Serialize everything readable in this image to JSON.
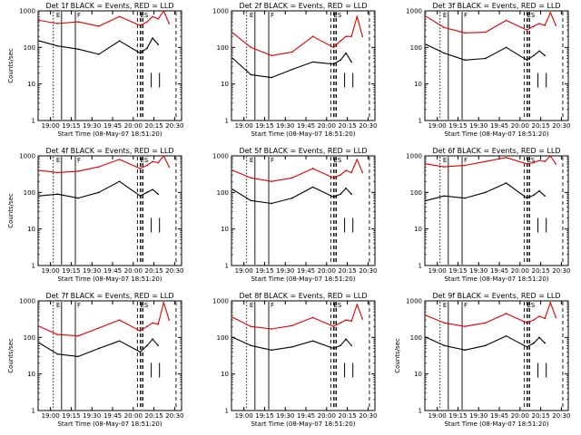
{
  "colors": {
    "events": "#000000",
    "lld": "#e00000",
    "axes": "#000000",
    "background": "#ffffff"
  },
  "chart_data": [
    {
      "type": "line",
      "title": "Det 1f BLACK = Events, RED = LLD",
      "xlabel": "Start Time (08-May-07 18:51:20)",
      "ylabel": "Counts/sec",
      "yscale": "log",
      "ylim": [
        1,
        1000
      ],
      "xlim": [
        "18:51",
        "20:35"
      ],
      "x_ticks": [
        "19:00",
        "19:15",
        "19:30",
        "19:45",
        "20:00",
        "20:15",
        "20:30"
      ],
      "y_ticks": [
        "1",
        "10",
        "100",
        "1000"
      ],
      "annotations": [
        "E",
        "F",
        "ES"
      ],
      "series": [
        {
          "name": "BLACK = Events",
          "color": "#000000",
          "x": [
            "18:52",
            "19:05",
            "19:20",
            "19:35",
            "19:50",
            "20:05",
            "20:10",
            "20:14",
            "20:18"
          ],
          "values": [
            150,
            110,
            90,
            65,
            150,
            70,
            95,
            180,
            120
          ]
        },
        {
          "name": "RED = LLD",
          "color": "#e00000",
          "x": [
            "18:52",
            "19:05",
            "19:20",
            "19:35",
            "19:50",
            "20:05",
            "20:10",
            "20:14",
            "20:18",
            "20:22",
            "20:26"
          ],
          "values": [
            550,
            450,
            500,
            380,
            700,
            400,
            500,
            700,
            600,
            1000,
            450
          ]
        }
      ]
    },
    {
      "type": "line",
      "title": "Det 2f BLACK = Events, RED = LLD",
      "xlabel": "Start Time (08-May-07 18:51:20)",
      "ylabel": "",
      "yscale": "log",
      "ylim": [
        1,
        1000
      ],
      "xlim": [
        "18:51",
        "20:35"
      ],
      "x_ticks": [
        "19:00",
        "19:15",
        "19:30",
        "19:45",
        "20:00",
        "20:15",
        "20:30"
      ],
      "y_ticks": [
        "1",
        "10",
        "100",
        "1000"
      ],
      "annotations": [
        "E",
        "F",
        "ES"
      ],
      "series": [
        {
          "name": "BLACK = Events",
          "color": "#000000",
          "x": [
            "18:52",
            "19:05",
            "19:20",
            "19:35",
            "19:50",
            "20:05",
            "20:10",
            "20:14",
            "20:18"
          ],
          "values": [
            50,
            18,
            15,
            25,
            40,
            35,
            45,
            70,
            40
          ]
        },
        {
          "name": "RED = LLD",
          "color": "#e00000",
          "x": [
            "18:52",
            "19:05",
            "19:20",
            "19:35",
            "19:50",
            "20:05",
            "20:10",
            "20:14",
            "20:18",
            "20:22",
            "20:26"
          ],
          "values": [
            250,
            100,
            60,
            75,
            200,
            100,
            150,
            200,
            200,
            700,
            200
          ]
        }
      ]
    },
    {
      "type": "line",
      "title": "Det 3f BLACK = Events, RED = LLD",
      "xlabel": "Start Time (08-May-07 18:51:20)",
      "ylabel": "",
      "yscale": "log",
      "ylim": [
        1,
        1000
      ],
      "xlim": [
        "18:51",
        "20:35"
      ],
      "x_ticks": [
        "19:00",
        "19:15",
        "19:30",
        "19:45",
        "20:00",
        "20:15",
        "20:30"
      ],
      "y_ticks": [
        "1",
        "10",
        "100",
        "1000"
      ],
      "annotations": [
        "E",
        "F",
        "ES"
      ],
      "series": [
        {
          "name": "BLACK = Events",
          "color": "#000000",
          "x": [
            "18:52",
            "19:05",
            "19:20",
            "19:35",
            "19:50",
            "20:05",
            "20:10",
            "20:14",
            "20:18"
          ],
          "values": [
            120,
            70,
            45,
            50,
            100,
            45,
            60,
            80,
            60
          ]
        },
        {
          "name": "RED = LLD",
          "color": "#e00000",
          "x": [
            "18:52",
            "19:05",
            "19:20",
            "19:35",
            "19:50",
            "20:05",
            "20:10",
            "20:14",
            "20:18",
            "20:22",
            "20:26"
          ],
          "values": [
            700,
            350,
            250,
            260,
            550,
            300,
            380,
            450,
            400,
            900,
            400
          ]
        }
      ]
    },
    {
      "type": "line",
      "title": "Det 4f BLACK = Events, RED = LLD",
      "xlabel": "Start Time (08-May-07 18:51:20)",
      "ylabel": "Counts/sec",
      "yscale": "log",
      "ylim": [
        1,
        1000
      ],
      "xlim": [
        "18:51",
        "20:35"
      ],
      "x_ticks": [
        "19:00",
        "19:15",
        "19:30",
        "19:45",
        "20:00",
        "20:15",
        "20:30"
      ],
      "y_ticks": [
        "1",
        "10",
        "100",
        "1000"
      ],
      "annotations": [
        "E",
        "F",
        "ES"
      ],
      "series": [
        {
          "name": "BLACK = Events",
          "color": "#000000",
          "x": [
            "18:52",
            "19:05",
            "19:20",
            "19:35",
            "19:50",
            "20:05",
            "20:10",
            "20:14",
            "20:18"
          ],
          "values": [
            80,
            90,
            70,
            100,
            200,
            80,
            100,
            120,
            90
          ]
        },
        {
          "name": "RED = LLD",
          "color": "#e00000",
          "x": [
            "18:52",
            "19:05",
            "19:20",
            "19:35",
            "19:50",
            "20:05",
            "20:10",
            "20:14",
            "20:18",
            "20:22",
            "20:26"
          ],
          "values": [
            400,
            350,
            380,
            500,
            800,
            450,
            550,
            700,
            650,
            1000,
            500
          ]
        }
      ]
    },
    {
      "type": "line",
      "title": "Det 5f BLACK = Events, RED = LLD",
      "xlabel": "Start Time (08-May-07 18:51:20)",
      "ylabel": "",
      "yscale": "log",
      "ylim": [
        1,
        1000
      ],
      "xlim": [
        "18:51",
        "20:35"
      ],
      "x_ticks": [
        "19:00",
        "19:15",
        "19:30",
        "19:45",
        "20:00",
        "20:15",
        "20:30"
      ],
      "y_ticks": [
        "1",
        "10",
        "100",
        "1000"
      ],
      "annotations": [
        "E",
        "F",
        "ES"
      ],
      "series": [
        {
          "name": "BLACK = Events",
          "color": "#000000",
          "x": [
            "18:52",
            "19:05",
            "19:20",
            "19:35",
            "19:50",
            "20:05",
            "20:10",
            "20:14",
            "20:18"
          ],
          "values": [
            120,
            60,
            50,
            70,
            140,
            75,
            90,
            130,
            90
          ]
        },
        {
          "name": "RED = LLD",
          "color": "#e00000",
          "x": [
            "18:52",
            "19:05",
            "19:20",
            "19:35",
            "19:50",
            "20:05",
            "20:10",
            "20:14",
            "20:18",
            "20:22",
            "20:26"
          ],
          "values": [
            400,
            250,
            200,
            250,
            450,
            250,
            300,
            400,
            350,
            800,
            350
          ]
        }
      ]
    },
    {
      "type": "line",
      "title": "Det 6f BLACK = Events, RED = LLD",
      "xlabel": "Start Time (08-May-07 18:51:20)",
      "ylabel": "",
      "yscale": "log",
      "ylim": [
        1,
        1000
      ],
      "xlim": [
        "18:51",
        "20:35"
      ],
      "x_ticks": [
        "19:00",
        "19:15",
        "19:30",
        "19:45",
        "20:00",
        "20:15",
        "20:30"
      ],
      "y_ticks": [
        "1",
        "10",
        "100",
        "1000"
      ],
      "annotations": [
        "E",
        "F",
        "ES"
      ],
      "series": [
        {
          "name": "BLACK = Events",
          "color": "#000000",
          "x": [
            "18:52",
            "19:05",
            "19:20",
            "19:35",
            "19:50",
            "20:05",
            "20:10",
            "20:14",
            "20:18"
          ],
          "values": [
            60,
            80,
            70,
            100,
            180,
            70,
            85,
            110,
            80
          ]
        },
        {
          "name": "RED = LLD",
          "color": "#e00000",
          "x": [
            "18:52",
            "19:05",
            "19:20",
            "19:35",
            "19:50",
            "20:05",
            "20:10",
            "20:14",
            "20:18",
            "20:22",
            "20:26"
          ],
          "values": [
            600,
            500,
            550,
            700,
            900,
            600,
            650,
            750,
            700,
            1000,
            600
          ]
        }
      ]
    },
    {
      "type": "line",
      "title": "Det 7f BLACK = Events, RED = LLD",
      "xlabel": "Start Time (08-May-07 18:51:20)",
      "ylabel": "Counts/sec",
      "yscale": "log",
      "ylim": [
        1,
        1000
      ],
      "xlim": [
        "18:51",
        "20:35"
      ],
      "x_ticks": [
        "19:00",
        "19:15",
        "19:30",
        "19:45",
        "20:00",
        "20:15",
        "20:30"
      ],
      "y_ticks": [
        "1",
        "10",
        "100",
        "1000"
      ],
      "annotations": [
        "E",
        "F",
        "ES"
      ],
      "series": [
        {
          "name": "BLACK = Events",
          "color": "#000000",
          "x": [
            "18:52",
            "19:05",
            "19:20",
            "19:35",
            "19:50",
            "20:05",
            "20:10",
            "20:14",
            "20:18"
          ],
          "values": [
            70,
            35,
            30,
            50,
            80,
            40,
            60,
            90,
            60
          ]
        },
        {
          "name": "RED = LLD",
          "color": "#e00000",
          "x": [
            "18:52",
            "19:05",
            "19:20",
            "19:35",
            "19:50",
            "20:05",
            "20:10",
            "20:14",
            "20:18",
            "20:22",
            "20:26"
          ],
          "values": [
            200,
            120,
            110,
            180,
            300,
            150,
            200,
            250,
            230,
            900,
            300
          ]
        }
      ]
    },
    {
      "type": "line",
      "title": "Det 8f BLACK = Events, RED = LLD",
      "xlabel": "Start Time (08-May-07 18:51:20)",
      "ylabel": "",
      "yscale": "log",
      "ylim": [
        1,
        1000
      ],
      "xlim": [
        "18:51",
        "20:35"
      ],
      "x_ticks": [
        "19:00",
        "19:15",
        "19:30",
        "19:45",
        "20:00",
        "20:15",
        "20:30"
      ],
      "y_ticks": [
        "1",
        "10",
        "100",
        "1000"
      ],
      "annotations": [
        "E",
        "F",
        "ES"
      ],
      "series": [
        {
          "name": "BLACK = Events",
          "color": "#000000",
          "x": [
            "18:52",
            "19:05",
            "19:20",
            "19:35",
            "19:50",
            "20:05",
            "20:10",
            "20:14",
            "20:18"
          ],
          "values": [
            100,
            60,
            45,
            55,
            80,
            50,
            60,
            90,
            60
          ]
        },
        {
          "name": "RED = LLD",
          "color": "#e00000",
          "x": [
            "18:52",
            "19:05",
            "19:20",
            "19:35",
            "19:50",
            "20:05",
            "20:10",
            "20:14",
            "20:18",
            "20:22",
            "20:26"
          ],
          "values": [
            350,
            200,
            170,
            210,
            350,
            200,
            250,
            300,
            280,
            800,
            320
          ]
        }
      ]
    },
    {
      "type": "line",
      "title": "Det 9f BLACK = Events, RED = LLD",
      "xlabel": "Start Time (08-May-07 18:51:20)",
      "ylabel": "Counts/sec",
      "yscale": "log",
      "ylim": [
        1,
        1000
      ],
      "xlim": [
        "18:51",
        "20:35"
      ],
      "x_ticks": [
        "19:00",
        "19:15",
        "19:30",
        "19:45",
        "20:00",
        "20:15",
        "20:30"
      ],
      "y_ticks": [
        "1",
        "10",
        "100",
        "1000"
      ],
      "annotations": [
        "E",
        "F",
        "ES"
      ],
      "series": [
        {
          "name": "BLACK = Events",
          "color": "#000000",
          "x": [
            "18:52",
            "19:05",
            "19:20",
            "19:35",
            "19:50",
            "20:05",
            "20:10",
            "20:14",
            "20:18"
          ],
          "values": [
            100,
            60,
            45,
            60,
            110,
            55,
            70,
            100,
            70
          ]
        },
        {
          "name": "RED = LLD",
          "color": "#e00000",
          "x": [
            "18:52",
            "19:05",
            "19:20",
            "19:35",
            "19:50",
            "20:05",
            "20:10",
            "20:14",
            "20:18",
            "20:22",
            "20:26"
          ],
          "values": [
            400,
            250,
            200,
            250,
            450,
            250,
            300,
            380,
            330,
            900,
            350
          ]
        }
      ]
    }
  ]
}
